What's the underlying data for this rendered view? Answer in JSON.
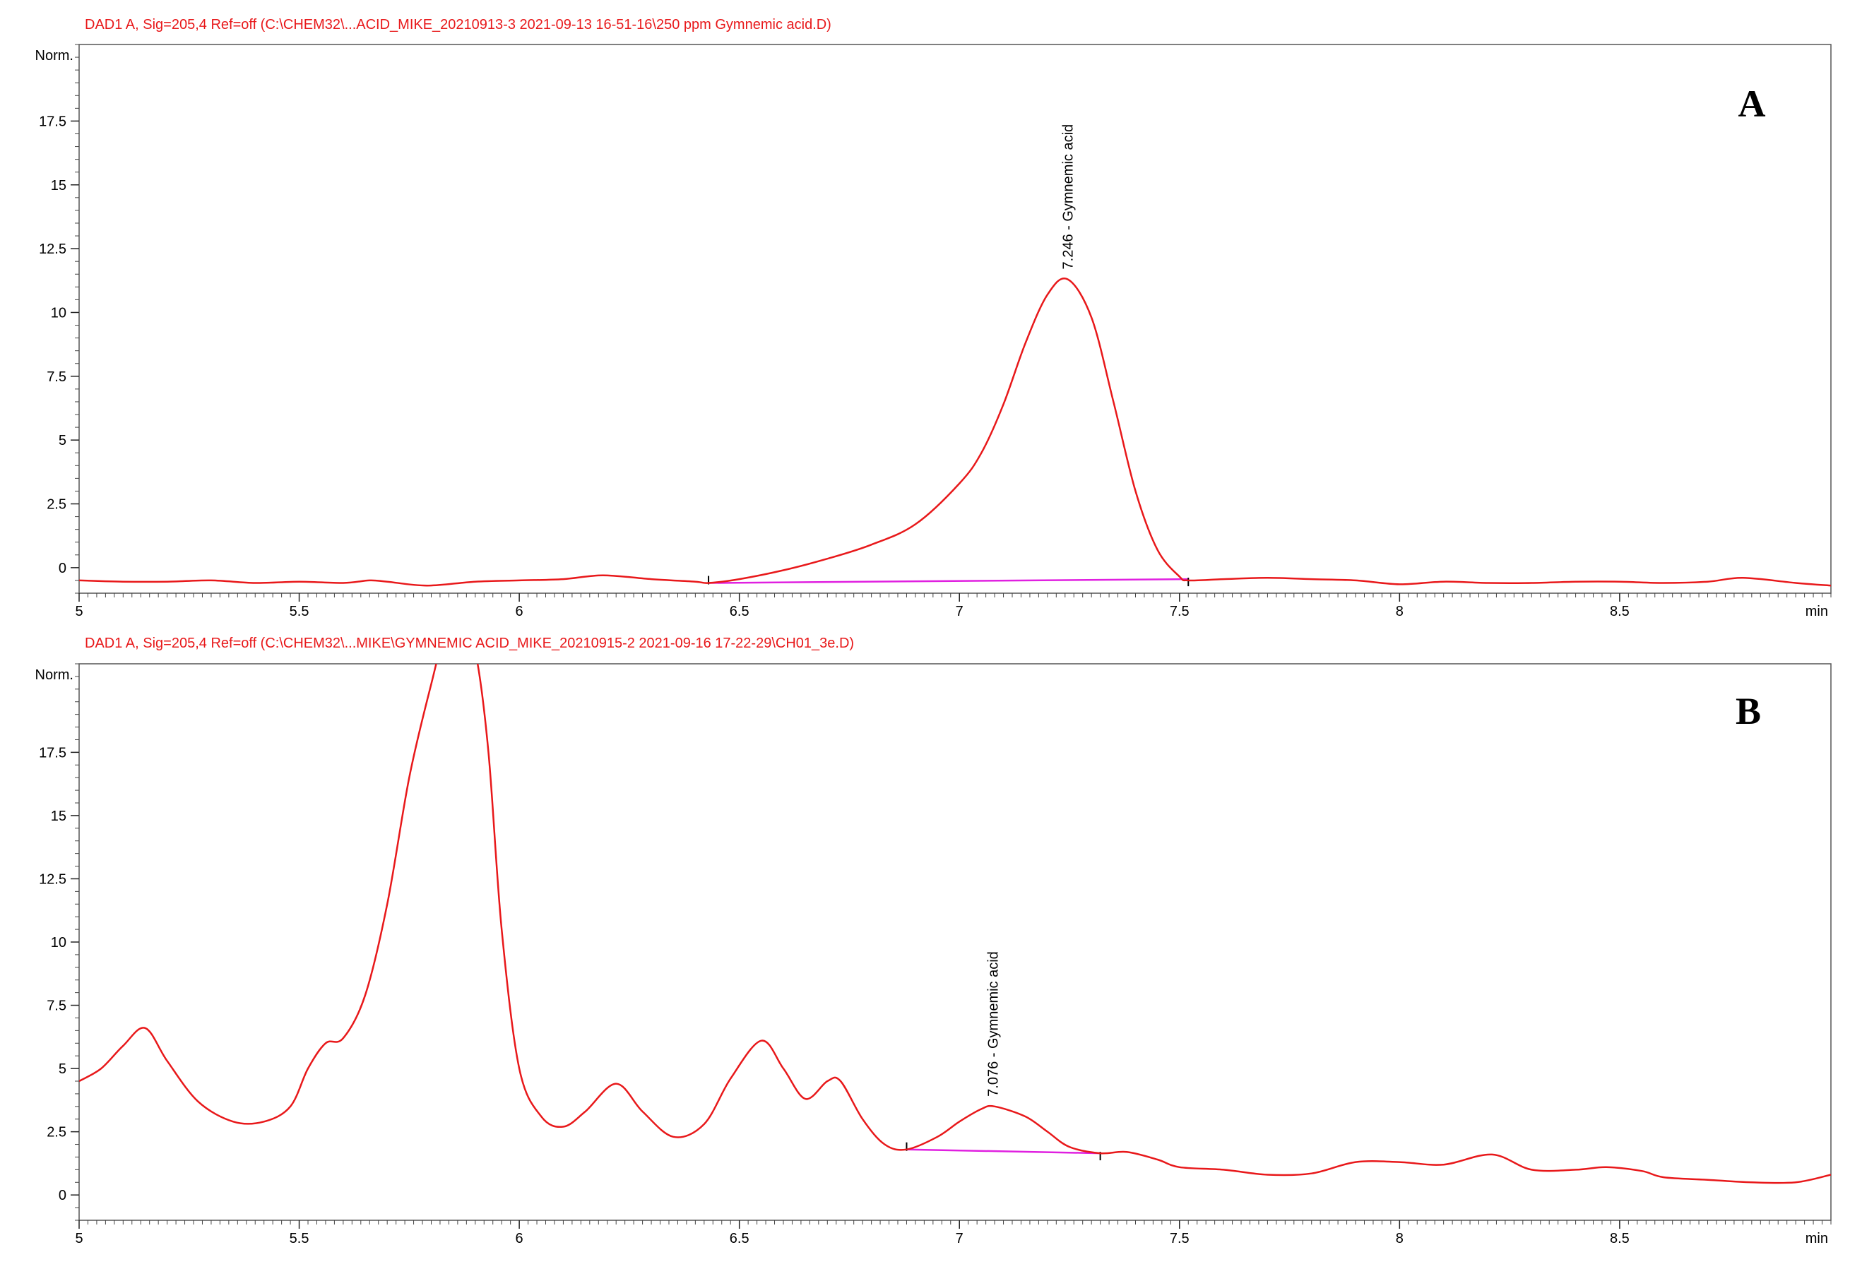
{
  "chart_data": [
    {
      "type": "line",
      "panel_letter": "A",
      "header": "DAD1 A, Sig=205,4 Ref=off (C:\\CHEM32\\...ACID_MIKE_20210913-3 2021-09-13 16-51-16\\250 ppm Gymnemic acid.D)",
      "ylabel": "Norm.",
      "xunit": "min",
      "xlim": [
        5,
        8.98
      ],
      "ylim": [
        -1,
        20.5
      ],
      "xticks": [
        5,
        5.5,
        6,
        6.5,
        7,
        7.5,
        8,
        8.5
      ],
      "xtick_labels": [
        "5",
        "5.5",
        "6",
        "6.5",
        "7",
        "7.5",
        "8",
        "8.5"
      ],
      "yticks": [
        0,
        2.5,
        5,
        7.5,
        10,
        12.5,
        15,
        17.5
      ],
      "ytick_labels": [
        "0",
        "2.5",
        "5",
        "7.5",
        "10",
        "12.5",
        "15",
        "17.5"
      ],
      "series": [
        {
          "color": "#e8181a",
          "x": [
            5.0,
            5.1,
            5.2,
            5.3,
            5.4,
            5.5,
            5.6,
            5.66,
            5.7,
            5.79,
            5.9,
            6.0,
            6.1,
            6.19,
            6.3,
            6.4,
            6.43,
            6.5,
            6.6,
            6.7,
            6.8,
            6.9,
            7.0,
            7.05,
            7.1,
            7.15,
            7.2,
            7.246,
            7.3,
            7.35,
            7.4,
            7.45,
            7.5,
            7.52,
            7.6,
            7.7,
            7.8,
            7.9,
            8.0,
            8.1,
            8.2,
            8.3,
            8.4,
            8.5,
            8.6,
            8.7,
            8.78,
            8.9,
            8.98
          ],
          "y": [
            -0.5,
            -0.55,
            -0.55,
            -0.5,
            -0.6,
            -0.55,
            -0.6,
            -0.5,
            -0.55,
            -0.7,
            -0.55,
            -0.5,
            -0.45,
            -0.3,
            -0.45,
            -0.55,
            -0.6,
            -0.45,
            -0.1,
            0.35,
            0.9,
            1.7,
            3.3,
            4.5,
            6.4,
            8.8,
            10.7,
            11.3,
            9.8,
            6.5,
            3.0,
            0.7,
            -0.35,
            -0.5,
            -0.45,
            -0.4,
            -0.45,
            -0.5,
            -0.65,
            -0.55,
            -0.6,
            -0.6,
            -0.55,
            -0.55,
            -0.6,
            -0.55,
            -0.4,
            -0.6,
            -0.7
          ]
        }
      ],
      "baseline": {
        "color": "#e020e0",
        "x": [
          6.43,
          7.52
        ],
        "y": [
          -0.6,
          -0.45
        ]
      },
      "annotations": [
        {
          "text": "7.246 -  Gymnemic acid",
          "x": 7.246,
          "y": 11.3
        }
      ]
    },
    {
      "type": "line",
      "panel_letter": "B",
      "header": "DAD1 A, Sig=205,4 Ref=off (C:\\CHEM32\\...MIKE\\GYMNEMIC ACID_MIKE_20210915-2 2021-09-16 17-22-29\\CH01_3e.D)",
      "ylabel": "Norm.",
      "xunit": "min",
      "xlim": [
        5,
        8.98
      ],
      "ylim": [
        -1,
        21
      ],
      "xticks": [
        5,
        5.5,
        6,
        6.5,
        7,
        7.5,
        8,
        8.5
      ],
      "xtick_labels": [
        "5",
        "5.5",
        "6",
        "6.5",
        "7",
        "7.5",
        "8",
        "8.5"
      ],
      "yticks": [
        0,
        2.5,
        5,
        7.5,
        10,
        12.5,
        15,
        17.5
      ],
      "ytick_labels": [
        "0",
        "2.5",
        "5",
        "7.5",
        "10",
        "12.5",
        "15",
        "17.5"
      ],
      "series": [
        {
          "color": "#e8181a",
          "x": [
            5.0,
            5.05,
            5.1,
            5.15,
            5.2,
            5.27,
            5.35,
            5.42,
            5.48,
            5.52,
            5.56,
            5.6,
            5.65,
            5.7,
            5.75,
            5.8,
            5.83,
            5.87,
            5.9,
            5.93,
            5.96,
            6.0,
            6.05,
            6.1,
            6.15,
            6.22,
            6.28,
            6.35,
            6.42,
            6.48,
            6.55,
            6.6,
            6.65,
            6.7,
            6.73,
            6.78,
            6.83,
            6.88,
            6.95,
            7.0,
            7.05,
            7.08,
            7.15,
            7.2,
            7.25,
            7.32,
            7.38,
            7.45,
            7.5,
            7.6,
            7.7,
            7.8,
            7.9,
            8.0,
            8.1,
            8.21,
            8.3,
            8.4,
            8.47,
            8.55,
            8.6,
            8.7,
            8.8,
            8.9,
            8.98
          ],
          "y": [
            4.5,
            5.0,
            5.9,
            6.6,
            5.3,
            3.7,
            2.9,
            2.9,
            3.5,
            5.0,
            6.0,
            6.2,
            7.9,
            11.5,
            16.5,
            20.2,
            22.0,
            22.5,
            21.5,
            17.5,
            10.5,
            5.0,
            3.1,
            2.7,
            3.3,
            4.4,
            3.3,
            2.3,
            2.8,
            4.6,
            6.1,
            5.0,
            3.8,
            4.5,
            4.5,
            3.0,
            2.0,
            1.8,
            2.3,
            2.9,
            3.4,
            3.5,
            3.1,
            2.5,
            1.9,
            1.65,
            1.7,
            1.4,
            1.1,
            1.0,
            0.8,
            0.85,
            1.3,
            1.3,
            1.2,
            1.6,
            1.0,
            1.0,
            1.1,
            0.95,
            0.7,
            0.6,
            0.5,
            0.5,
            0.8
          ]
        }
      ],
      "baseline": {
        "color": "#e020e0",
        "x": [
          6.88,
          7.32
        ],
        "y": [
          1.8,
          1.65
        ]
      },
      "annotations": [
        {
          "text": "7.076 -  Gymnemic acid",
          "x": 7.076,
          "y": 3.5
        }
      ]
    }
  ]
}
